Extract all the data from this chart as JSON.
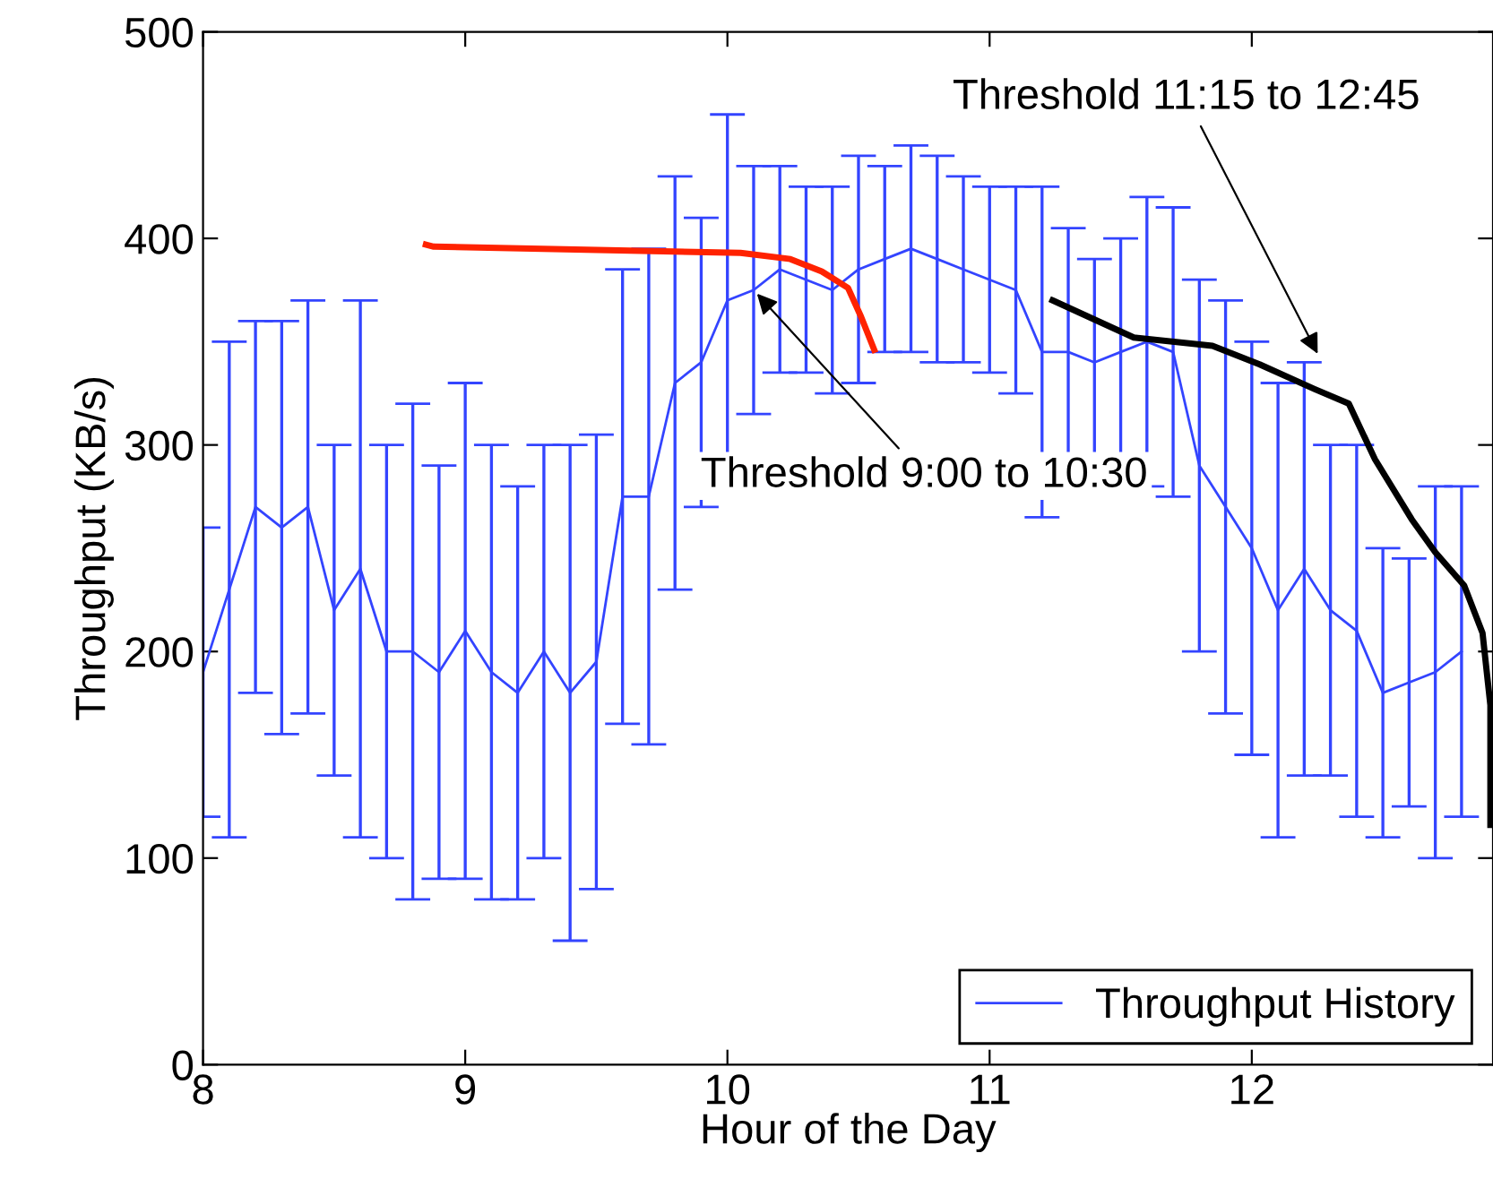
{
  "chart_data": {
    "type": "line",
    "xlabel": "Hour of the Day",
    "ylabel": "Throughput (KB/s)",
    "xlim": [
      8,
      12.92
    ],
    "xticks": [
      8,
      9,
      10,
      11,
      12
    ],
    "ylim": [
      0,
      500
    ],
    "yticks": [
      0,
      100,
      200,
      300,
      400,
      500
    ],
    "grid": false,
    "legend": "bottom right",
    "marker": "none",
    "line_style": "solid",
    "series": [
      {
        "name": "Throughput History",
        "color": "#3344ff",
        "x": [
          8.0,
          8.1,
          8.2,
          8.3,
          8.4,
          8.5,
          8.6,
          8.7,
          8.8,
          8.9,
          9.0,
          9.1,
          9.2,
          9.3,
          9.4,
          9.5,
          9.6,
          9.7,
          9.8,
          9.9,
          10.0,
          10.1,
          10.2,
          10.3,
          10.4,
          10.5,
          10.6,
          10.7,
          10.8,
          10.9,
          11.0,
          11.1,
          11.2,
          11.3,
          11.4,
          11.5,
          11.6,
          11.7,
          11.8,
          11.9,
          12.0,
          12.1,
          12.2,
          12.3,
          12.4,
          12.5,
          12.6,
          12.7,
          12.8
        ],
        "values": [
          190,
          230,
          270,
          260,
          270,
          220,
          240,
          200,
          200,
          190,
          210,
          190,
          180,
          200,
          180,
          195,
          275,
          275,
          330,
          340,
          370,
          375,
          385,
          380,
          375,
          385,
          390,
          395,
          390,
          385,
          380,
          375,
          345,
          345,
          340,
          345,
          350,
          345,
          290,
          270,
          250,
          220,
          240,
          220,
          210,
          180,
          185,
          190,
          200
        ],
        "errors": [
          70,
          120,
          90,
          100,
          100,
          80,
          130,
          100,
          120,
          100,
          120,
          110,
          100,
          100,
          120,
          110,
          110,
          120,
          100,
          70,
          90,
          60,
          50,
          45,
          50,
          55,
          45,
          50,
          50,
          45,
          45,
          50,
          80,
          60,
          50,
          55,
          70,
          70,
          90,
          100,
          100,
          110,
          100,
          80,
          90,
          70,
          60,
          90,
          80
        ]
      },
      {
        "color": "#ff2200",
        "x": [
          8.85,
          8.88,
          10.05,
          10.24,
          10.36,
          10.46,
          10.51,
          10.56
        ],
        "values": [
          397,
          396,
          393,
          390,
          384,
          376,
          362,
          346
        ]
      },
      {
        "color": "#000000",
        "x": [
          11.24,
          11.55,
          11.85,
          12.03,
          12.24,
          12.37,
          12.47,
          12.61,
          12.7,
          12.81,
          12.88,
          12.91,
          12.91
        ],
        "values": [
          370,
          352,
          348,
          339,
          327,
          320,
          293,
          264,
          248,
          232,
          209,
          174,
          116
        ]
      }
    ],
    "annotations": [
      {
        "text": "Threshold 9:00 to 10:30",
        "x": 10.1,
        "y": 375
      },
      {
        "text": "Threshold 11:15 to 12:45",
        "x": 12.26,
        "y": 342
      }
    ]
  }
}
